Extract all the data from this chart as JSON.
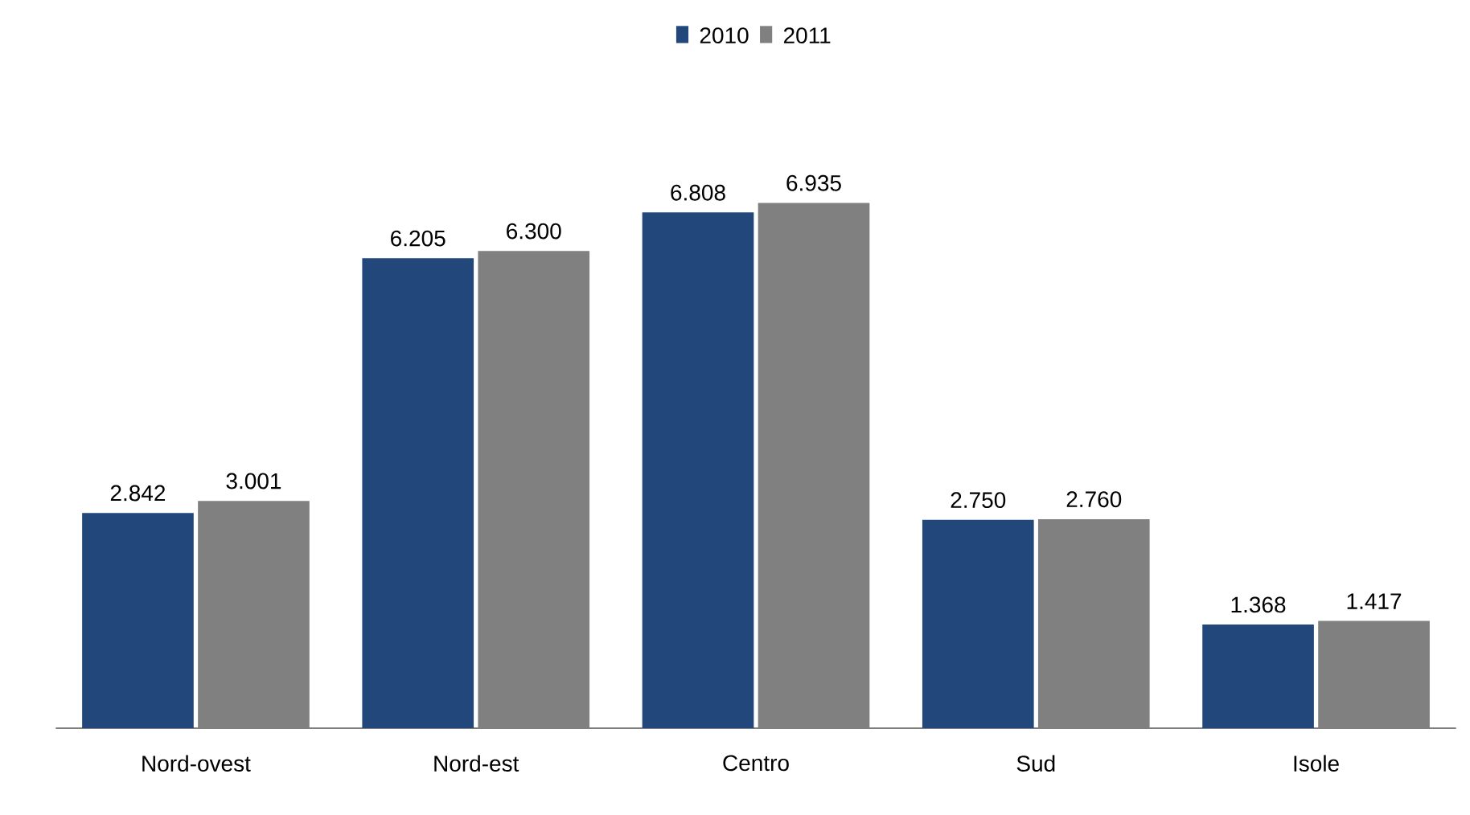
{
  "chart_data": {
    "type": "bar",
    "categories": [
      "Nord-ovest",
      "Nord-est",
      "Centro",
      "Sud",
      "Isole"
    ],
    "series": [
      {
        "name": "2010",
        "color": "#22477a",
        "values": [
          2842,
          6205,
          6808,
          2750,
          1368
        ],
        "value_labels": [
          "2.842",
          "6.205",
          "6.808",
          "2.750",
          "1.368"
        ]
      },
      {
        "name": "2011",
        "color": "#808080",
        "values": [
          3001,
          6300,
          6935,
          2760,
          1417
        ],
        "value_labels": [
          "3.001",
          "6.300",
          "6.935",
          "2.760",
          "1.417"
        ]
      }
    ],
    "legend": "top"
  }
}
